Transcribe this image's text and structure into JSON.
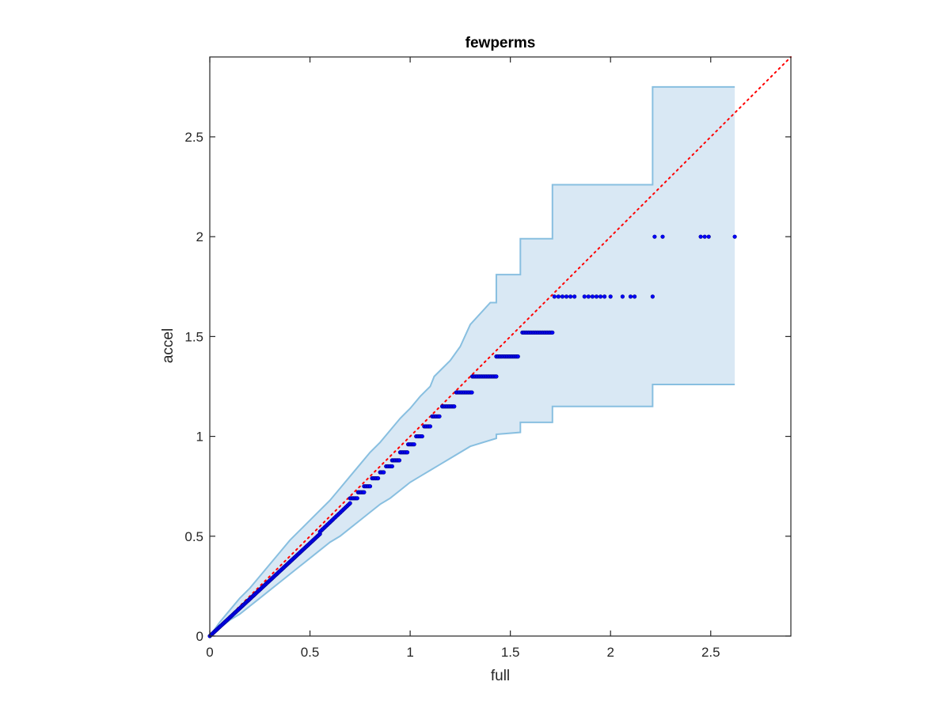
{
  "chart_data": {
    "type": "scatter",
    "title": "fewperms",
    "xlabel": "full",
    "ylabel": "accel",
    "xlim": [
      0,
      2.9
    ],
    "ylim": [
      0,
      2.9
    ],
    "xticks": [
      0,
      0.5,
      1,
      1.5,
      2,
      2.5
    ],
    "yticks": [
      0,
      0.5,
      1,
      1.5,
      2,
      2.5
    ],
    "xtick_labels": [
      "0",
      "0.5",
      "1",
      "1.5",
      "2",
      "2.5"
    ],
    "ytick_labels": [
      "0",
      "0.5",
      "1",
      "1.5",
      "2",
      "2.5"
    ],
    "grid": false,
    "box": true,
    "colors": {
      "points": "#0000ff",
      "points_edge": "#00008b",
      "reference_line": "#ff0000",
      "band_fill": "#d9e8f4",
      "band_edge": "#88bfe0",
      "axes": "#262626"
    },
    "reference_line": {
      "style": "dotted",
      "from": [
        0,
        0
      ],
      "to": [
        2.9,
        2.9
      ]
    },
    "band": {
      "upper": [
        [
          0,
          0
        ],
        [
          0.05,
          0.07
        ],
        [
          0.1,
          0.13
        ],
        [
          0.15,
          0.19
        ],
        [
          0.2,
          0.24
        ],
        [
          0.25,
          0.3
        ],
        [
          0.3,
          0.36
        ],
        [
          0.35,
          0.42
        ],
        [
          0.4,
          0.48
        ],
        [
          0.45,
          0.53
        ],
        [
          0.5,
          0.58
        ],
        [
          0.55,
          0.63
        ],
        [
          0.6,
          0.68
        ],
        [
          0.65,
          0.74
        ],
        [
          0.7,
          0.8
        ],
        [
          0.75,
          0.86
        ],
        [
          0.8,
          0.92
        ],
        [
          0.85,
          0.97
        ],
        [
          0.9,
          1.03
        ],
        [
          0.95,
          1.09
        ],
        [
          1.0,
          1.14
        ],
        [
          1.05,
          1.2
        ],
        [
          1.1,
          1.25
        ],
        [
          1.12,
          1.3
        ],
        [
          1.2,
          1.38
        ],
        [
          1.25,
          1.45
        ],
        [
          1.3,
          1.56
        ],
        [
          1.4,
          1.67
        ],
        [
          1.43,
          1.67
        ],
        [
          1.43,
          1.81
        ],
        [
          1.55,
          1.81
        ],
        [
          1.55,
          1.99
        ],
        [
          1.71,
          1.99
        ],
        [
          1.71,
          2.26
        ],
        [
          2.21,
          2.26
        ],
        [
          2.21,
          2.75
        ],
        [
          2.62,
          2.75
        ]
      ],
      "lower": [
        [
          0,
          0
        ],
        [
          0.05,
          0.04
        ],
        [
          0.1,
          0.08
        ],
        [
          0.15,
          0.11
        ],
        [
          0.2,
          0.15
        ],
        [
          0.25,
          0.19
        ],
        [
          0.3,
          0.23
        ],
        [
          0.35,
          0.27
        ],
        [
          0.4,
          0.31
        ],
        [
          0.45,
          0.35
        ],
        [
          0.5,
          0.39
        ],
        [
          0.55,
          0.43
        ],
        [
          0.6,
          0.47
        ],
        [
          0.65,
          0.5
        ],
        [
          0.7,
          0.54
        ],
        [
          0.75,
          0.58
        ],
        [
          0.8,
          0.62
        ],
        [
          0.85,
          0.66
        ],
        [
          0.9,
          0.69
        ],
        [
          0.95,
          0.73
        ],
        [
          1.0,
          0.77
        ],
        [
          1.05,
          0.8
        ],
        [
          1.1,
          0.83
        ],
        [
          1.15,
          0.86
        ],
        [
          1.2,
          0.89
        ],
        [
          1.3,
          0.95
        ],
        [
          1.43,
          0.99
        ],
        [
          1.43,
          1.01
        ],
        [
          1.55,
          1.02
        ],
        [
          1.55,
          1.07
        ],
        [
          1.71,
          1.07
        ],
        [
          1.71,
          1.15
        ],
        [
          2.21,
          1.15
        ],
        [
          2.21,
          1.26
        ],
        [
          2.62,
          1.26
        ]
      ]
    },
    "series": [
      {
        "segments": [
          {
            "from": 0,
            "to": 0.55,
            "step": 0.005,
            "slope": 0.93
          },
          {
            "from": 0.55,
            "to": 0.7,
            "step": 0.006,
            "slope": 0.95
          }
        ],
        "levels": [
          {
            "y": 0.69,
            "x": [
              0.7,
              0.74
            ]
          },
          {
            "y": 0.72,
            "x": [
              0.74,
              0.77
            ]
          },
          {
            "y": 0.75,
            "x": [
              0.77,
              0.8
            ]
          },
          {
            "y": 0.79,
            "x": [
              0.81,
              0.84
            ]
          },
          {
            "y": 0.82,
            "x": [
              0.85,
              0.87
            ]
          },
          {
            "y": 0.85,
            "x": [
              0.88,
              0.91
            ]
          },
          {
            "y": 0.88,
            "x": [
              0.91,
              0.95
            ]
          },
          {
            "y": 0.92,
            "x": [
              0.95,
              0.99
            ]
          },
          {
            "y": 0.96,
            "x": [
              0.99,
              1.02
            ]
          },
          {
            "y": 1.0,
            "x": [
              1.03,
              1.06
            ]
          },
          {
            "y": 1.05,
            "x": [
              1.07,
              1.1
            ]
          },
          {
            "y": 1.1,
            "x": [
              1.11,
              1.15
            ]
          },
          {
            "y": 1.15,
            "x": [
              1.16,
              1.22
            ]
          },
          {
            "y": 1.22,
            "x": [
              1.23,
              1.31
            ]
          },
          {
            "y": 1.3,
            "x": [
              1.31,
              1.43
            ]
          },
          {
            "y": 1.4,
            "x": [
              1.43,
              1.54
            ]
          },
          {
            "y": 1.52,
            "x": [
              1.56,
              1.71
            ]
          }
        ],
        "points": [
          [
            1.72,
            1.7
          ],
          [
            1.74,
            1.7
          ],
          [
            1.76,
            1.7
          ],
          [
            1.78,
            1.7
          ],
          [
            1.8,
            1.7
          ],
          [
            1.82,
            1.7
          ],
          [
            1.87,
            1.7
          ],
          [
            1.89,
            1.7
          ],
          [
            1.91,
            1.7
          ],
          [
            1.93,
            1.7
          ],
          [
            1.95,
            1.7
          ],
          [
            1.97,
            1.7
          ],
          [
            2.0,
            1.7
          ],
          [
            2.06,
            1.7
          ],
          [
            2.1,
            1.7
          ],
          [
            2.12,
            1.7
          ],
          [
            2.21,
            1.7
          ],
          [
            2.22,
            2.0
          ],
          [
            2.26,
            2.0
          ],
          [
            2.45,
            2.0
          ],
          [
            2.47,
            2.0
          ],
          [
            2.49,
            2.0
          ],
          [
            2.62,
            2.0
          ]
        ]
      }
    ]
  }
}
